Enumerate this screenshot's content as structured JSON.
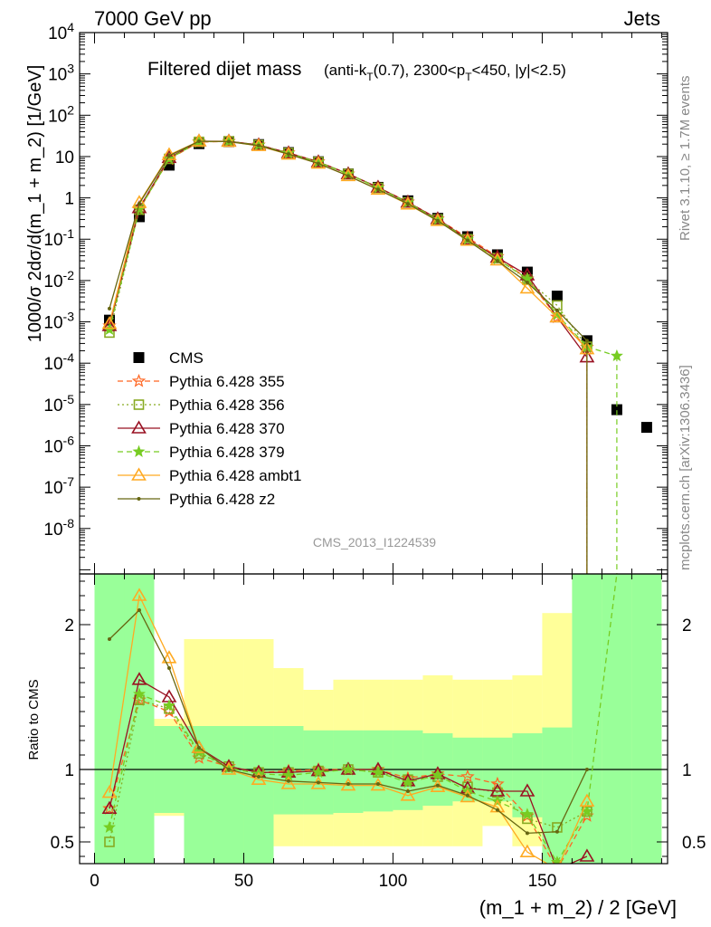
{
  "header": {
    "left": "7000 GeV pp",
    "right": "Jets",
    "title_main": "Filtered dijet mass",
    "title_sub_1": "(anti-k",
    "title_sub_T1": "T",
    "title_sub_2": "(0.7), 2300<p",
    "title_sub_T2": "T",
    "title_sub_3": "<450, |y|<2.5)"
  },
  "side": {
    "rivet": "Rivet 3.1.10, ≥ 1.7M events",
    "mcplots": "mcplots.cern.ch [arXiv:1306.3436]"
  },
  "watermark": "CMS_2013_I1224539",
  "chart_data": [
    {
      "type": "scatter",
      "title": "Filtered dijet mass",
      "ylabel": "1000/σ 2dσ/d(m_1 + m_2) [1/GeV]",
      "xlabel": "",
      "xlim": [
        -5,
        192
      ],
      "ylim_log10": [
        -9.1,
        4
      ],
      "log_y": true,
      "ytick_labels": [
        "10^-8",
        "10^-7",
        "10^-6",
        "10^-5",
        "10^-4",
        "10^-3",
        "10^-2",
        "10^-1",
        "1",
        "10",
        "10^2",
        "10^3",
        "10^4"
      ],
      "legend_position": "lower-left",
      "x": [
        5,
        15,
        25,
        35,
        45,
        55,
        65,
        75,
        85,
        95,
        105,
        115,
        125,
        135,
        145,
        155,
        165,
        175,
        185
      ],
      "series": [
        {
          "name": "CMS",
          "color": "#000000",
          "marker": "square-filled",
          "line": "none",
          "values": [
            0.0011,
            0.35,
            6.2,
            20.5,
            23,
            19.5,
            12.5,
            7.5,
            3.8,
            1.8,
            0.85,
            0.32,
            0.115,
            0.042,
            0.016,
            0.0042,
            0.00035,
            7.5e-06,
            2.8e-06
          ]
        },
        {
          "name": "Pythia 6.428 355",
          "color": "#ff6622",
          "marker": "star-open",
          "line": "dashed",
          "values": [
            0.0008,
            0.52,
            8.6,
            22.5,
            23.3,
            19.0,
            12.3,
            7.5,
            3.8,
            1.8,
            0.8,
            0.31,
            0.11,
            0.038,
            0.011,
            0.0013,
            0.00024,
            null,
            null
          ]
        },
        {
          "name": "Pythia 6.428 356",
          "color": "#88aa22",
          "marker": "square-open",
          "line": "dotted",
          "values": [
            0.00055,
            0.52,
            8.8,
            22.7,
            23.4,
            19.0,
            12.2,
            7.4,
            3.8,
            1.75,
            0.78,
            0.3,
            0.1,
            0.035,
            0.0105,
            0.0025,
            0.00025,
            null,
            null
          ]
        },
        {
          "name": "Pythia 6.428 370",
          "color": "#991122",
          "marker": "triangle-open",
          "line": "solid",
          "values": [
            0.0008,
            0.57,
            9.3,
            23.5,
            23.5,
            19.1,
            12.2,
            7.4,
            3.8,
            1.8,
            0.78,
            0.31,
            0.1,
            0.036,
            0.0135,
            0.0013,
            0.00014,
            null,
            null
          ]
        },
        {
          "name": "Pythia 6.428 379",
          "color": "#77cc22",
          "marker": "star-filled",
          "line": "dashed",
          "values": [
            0.00065,
            0.53,
            8.9,
            23.0,
            23.3,
            18.8,
            12.0,
            7.3,
            3.8,
            1.75,
            0.77,
            0.3,
            0.098,
            0.033,
            0.011,
            0.0015,
            0.00025,
            0.00015,
            null
          ]
        },
        {
          "name": "Pythia 6.428 ambt1",
          "color": "#ffaa22",
          "marker": "triangle-open",
          "line": "solid",
          "values": [
            0.0009,
            0.77,
            11.0,
            23.5,
            23.0,
            18.2,
            11.3,
            6.8,
            3.4,
            1.6,
            0.7,
            0.28,
            0.093,
            0.031,
            0.0065,
            0.0013,
            0.00022,
            null,
            null
          ]
        },
        {
          "name": "Pythia 6.428 z2",
          "color": "#666611",
          "marker": "dot",
          "line": "solid",
          "values": [
            0.0021,
            0.73,
            10.5,
            23.5,
            23.0,
            18.5,
            11.5,
            6.8,
            3.4,
            1.6,
            0.72,
            0.28,
            0.094,
            0.03,
            0.009,
            0.0019,
            0.00035,
            null,
            null
          ]
        }
      ]
    },
    {
      "type": "scatter",
      "title": "",
      "ylabel": "Ratio to CMS",
      "xlabel": "(m_1 + m_2) / 2 [GeV]",
      "xlim": [
        -5,
        192
      ],
      "ylim": [
        0.35,
        2.35
      ],
      "yticks": [
        "0.5",
        "1",
        "2"
      ],
      "xticks": [
        "0",
        "50",
        "100",
        "150"
      ],
      "band_edges": [
        0,
        10,
        20,
        30,
        40,
        50,
        60,
        70,
        80,
        90,
        100,
        110,
        120,
        130,
        140,
        150,
        160,
        170,
        180,
        190
      ],
      "band_green_lo": [
        0.35,
        0.35,
        0.7,
        0.35,
        0.35,
        0.35,
        0.69,
        0.69,
        0.7,
        0.71,
        0.72,
        0.75,
        0.78,
        0.78,
        0.67,
        0.35,
        0.35,
        0.35,
        0.35
      ],
      "band_green_hi": [
        2.35,
        2.35,
        1.3,
        1.3,
        1.3,
        1.3,
        1.3,
        1.27,
        1.27,
        1.27,
        1.27,
        1.25,
        1.22,
        1.22,
        1.25,
        1.29,
        2.35,
        2.35,
        2.35
      ],
      "band_yellow_lo": [
        0.35,
        0.35,
        0.68,
        0.35,
        0.35,
        0.35,
        0.47,
        0.47,
        0.47,
        0.47,
        0.47,
        0.47,
        0.47,
        0.61,
        0.47,
        0.35,
        0.35,
        0.35,
        0.35
      ],
      "band_yellow_hi": [
        2.35,
        2.35,
        1.35,
        1.9,
        1.9,
        1.9,
        1.7,
        1.55,
        1.62,
        1.62,
        1.62,
        1.65,
        1.62,
        1.62,
        1.65,
        2.08,
        2.35,
        2.35,
        2.35
      ],
      "x": [
        5,
        15,
        25,
        35,
        45,
        55,
        65,
        75,
        85,
        95,
        105,
        115,
        125,
        135,
        145,
        155,
        165,
        175
      ],
      "series": [
        {
          "name": "Pythia 6.428 355",
          "color": "#ff6622",
          "marker": "star-open",
          "line": "dashed",
          "values": [
            0.73,
            1.48,
            1.4,
            1.08,
            1.02,
            0.98,
            0.99,
            1.0,
            1.0,
            1.0,
            0.94,
            0.97,
            0.95,
            0.9,
            0.68,
            0.31,
            0.68,
            null
          ]
        },
        {
          "name": "Pythia 6.428 356",
          "color": "#88aa22",
          "marker": "square-open",
          "line": "dotted",
          "values": [
            0.5,
            1.48,
            1.42,
            1.11,
            1.02,
            0.98,
            0.98,
            0.99,
            1.0,
            0.98,
            0.93,
            0.95,
            0.88,
            0.84,
            0.66,
            0.6,
            0.71,
            null
          ]
        },
        {
          "name": "Pythia 6.428 370",
          "color": "#991122",
          "marker": "triangle-open",
          "line": "solid",
          "values": [
            0.73,
            1.62,
            1.5,
            1.15,
            1.02,
            0.98,
            0.98,
            0.99,
            1.0,
            1.0,
            0.92,
            0.97,
            0.87,
            0.85,
            0.85,
            0.31,
            0.4,
            null
          ]
        },
        {
          "name": "Pythia 6.428 379",
          "color": "#77cc22",
          "marker": "star-filled",
          "line": "dashed",
          "values": [
            0.6,
            1.52,
            1.44,
            1.12,
            1.01,
            0.97,
            0.96,
            0.98,
            1.0,
            0.98,
            0.91,
            0.96,
            0.85,
            0.78,
            0.69,
            0.36,
            0.71,
            2.35
          ]
        },
        {
          "name": "Pythia 6.428 ambt1",
          "color": "#ffaa22",
          "marker": "triangle-open",
          "line": "solid",
          "values": [
            0.84,
            2.2,
            1.77,
            1.15,
            1.0,
            0.93,
            0.9,
            0.9,
            0.89,
            0.89,
            0.82,
            0.88,
            0.81,
            0.74,
            0.43,
            0.31,
            0.78,
            null
          ]
        },
        {
          "name": "Pythia 6.428 z2",
          "color": "#666611",
          "marker": "dot",
          "line": "solid",
          "values": [
            1.9,
            2.1,
            1.7,
            1.15,
            1.0,
            0.95,
            0.92,
            0.91,
            0.9,
            0.9,
            0.85,
            0.89,
            0.82,
            0.72,
            0.56,
            0.57,
            1.0,
            null
          ]
        }
      ]
    }
  ]
}
